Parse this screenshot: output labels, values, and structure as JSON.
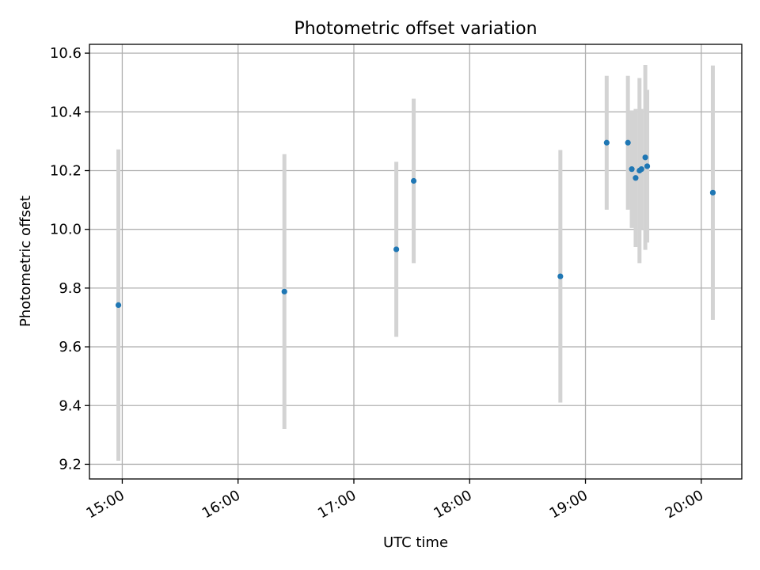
{
  "chart_data": {
    "type": "scatter",
    "title": "Photometric offset variation",
    "xlabel": "UTC time",
    "ylabel": "Photometric offset",
    "x_axis_type": "time",
    "xlim": [
      "14:43",
      "20:21"
    ],
    "ylim": [
      9.15,
      10.63
    ],
    "xticks": [
      "15:00",
      "16:00",
      "17:00",
      "18:00",
      "19:00",
      "20:00"
    ],
    "yticks": [
      9.2,
      9.4,
      9.6,
      9.8,
      10.0,
      10.2,
      10.4,
      10.6
    ],
    "grid": true,
    "legend": "none",
    "point_color": "#1f77b4",
    "errorbar_color": "#d3d3d3",
    "points": [
      {
        "time": "14:58",
        "y": 9.742,
        "yerr": 0.53
      },
      {
        "time": "16:24",
        "y": 9.788,
        "yerr": 0.468
      },
      {
        "time": "17:22",
        "y": 9.932,
        "yerr": 0.298
      },
      {
        "time": "17:31",
        "y": 10.165,
        "yerr": 0.28
      },
      {
        "time": "18:47",
        "y": 9.84,
        "yerr": 0.43
      },
      {
        "time": "19:11",
        "y": 10.295,
        "yerr": 0.228
      },
      {
        "time": "19:22",
        "y": 10.295,
        "yerr": 0.228
      },
      {
        "time": "19:24",
        "y": 10.205,
        "yerr": 0.2
      },
      {
        "time": "19:26",
        "y": 10.175,
        "yerr": 0.235
      },
      {
        "time": "19:28",
        "y": 10.2,
        "yerr": 0.315
      },
      {
        "time": "19:29",
        "y": 10.205,
        "yerr": 0.205
      },
      {
        "time": "19:31",
        "y": 10.245,
        "yerr": 0.315
      },
      {
        "time": "19:32",
        "y": 10.215,
        "yerr": 0.26
      },
      {
        "time": "20:06",
        "y": 10.125,
        "yerr": 0.433
      }
    ]
  }
}
